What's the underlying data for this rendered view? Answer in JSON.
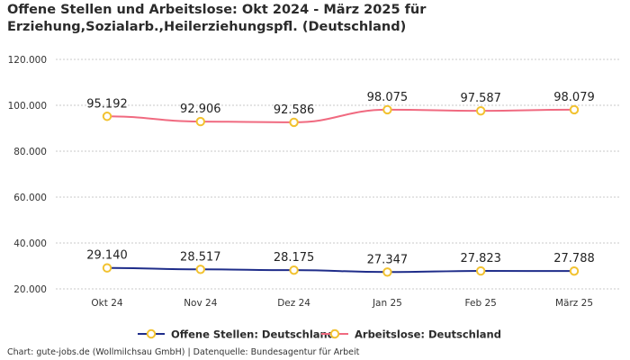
{
  "title": "Offene Stellen und Arbeitslose: Okt 2024 - März 2025 für Erziehung,Sozialarb.,Heilerziehungspfl. (Deutschland)",
  "footer": "Chart: gute-jobs.de (Wollmilchsau GmbH) | Datenquelle: Bundesagentur für Arbeit",
  "chart_data": {
    "type": "line",
    "categories": [
      "Okt 24",
      "Nov 24",
      "Dez 24",
      "Jan 25",
      "Feb 25",
      "März 25"
    ],
    "series": [
      {
        "name": "Offene Stellen: Deutschland",
        "values": [
          29140,
          28517,
          28175,
          27347,
          27823,
          27788
        ],
        "labels": [
          "29.140",
          "28.517",
          "28.175",
          "27.347",
          "27.823",
          "27.788"
        ],
        "color": "#1f2d8a"
      },
      {
        "name": "Arbeitslose: Deutschland",
        "values": [
          95192,
          92906,
          92586,
          98075,
          97587,
          98079
        ],
        "labels": [
          "95.192",
          "92.906",
          "92.586",
          "98.075",
          "97.587",
          "98.079"
        ],
        "color": "#f06a80"
      }
    ],
    "marker_color": "#f2c230",
    "ylim": [
      20000,
      120000
    ],
    "yticks": [
      20000,
      40000,
      60000,
      80000,
      100000,
      120000
    ],
    "ytick_labels": [
      "20.000",
      "40.000",
      "60.000",
      "80.000",
      "100.000",
      "120.000"
    ],
    "grid": true,
    "legend": "bottom",
    "xlabel": "",
    "ylabel": ""
  }
}
